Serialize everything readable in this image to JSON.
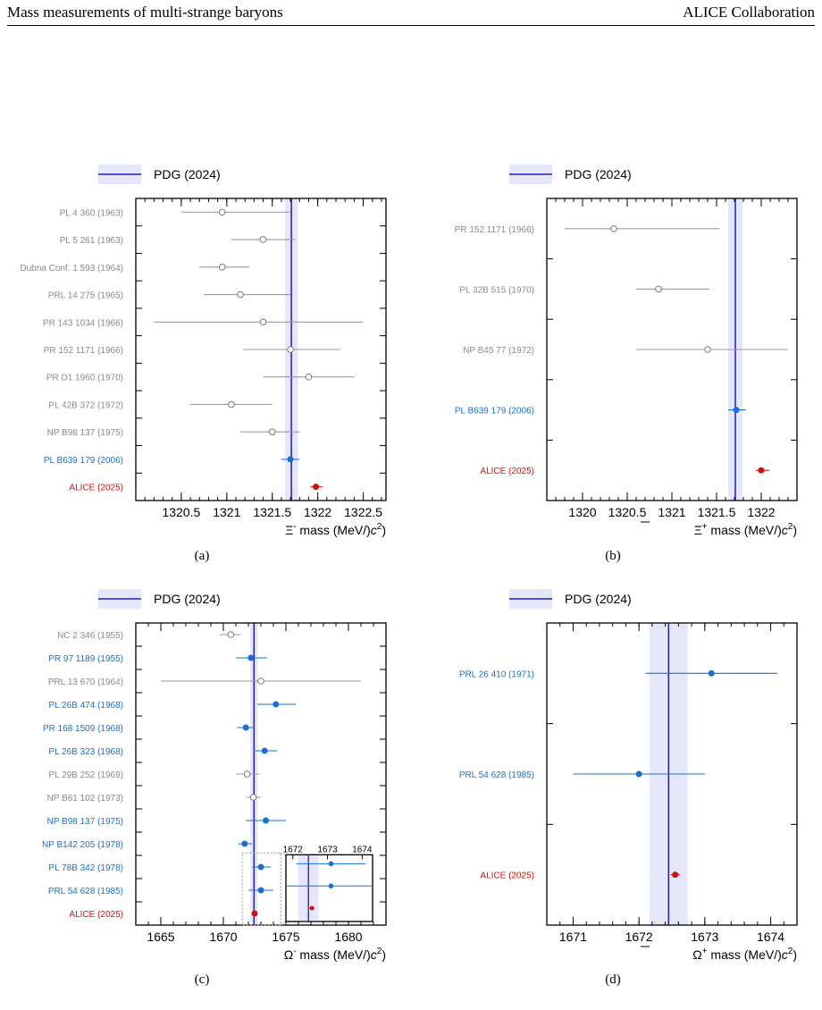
{
  "header": {
    "left": "Mass measurements of multi-strange baryons",
    "right": "ALICE Collaboration"
  },
  "legend_label": "PDG (2024)",
  "panels": [
    {
      "id": "a",
      "caption": "(a)",
      "xlabel": "Ξ mass (MeV/c²)",
      "sup": "-",
      "xlim": [
        1320.0,
        1322.75
      ],
      "ticks": [
        1320.5,
        1321,
        1321.5,
        1322,
        1322.5
      ],
      "tick_labels": [
        "1320.5",
        "1321",
        "1321.5",
        "1322",
        "1322.5"
      ],
      "pdg": {
        "value": 1321.71,
        "band": [
          1321.64,
          1321.78
        ]
      },
      "points": [
        {
          "label": "PL 4 360 (1963)",
          "value": 1320.95,
          "err": [
            1320.5,
            1321.7
          ],
          "style": "grey"
        },
        {
          "label": "PL 5 261 (1963)",
          "value": 1321.4,
          "err": [
            1321.05,
            1321.75
          ],
          "style": "grey"
        },
        {
          "label": "Dubna Conf. 1 593 (1964)",
          "value": 1320.95,
          "err": [
            1320.7,
            1321.25
          ],
          "style": "grey"
        },
        {
          "label": "PRL 14 275 (1965)",
          "value": 1321.15,
          "err": [
            1320.75,
            1321.7
          ],
          "style": "grey"
        },
        {
          "label": "PR 143 1034 (1966)",
          "value": 1321.4,
          "err": [
            1320.2,
            1322.5
          ],
          "style": "grey"
        },
        {
          "label": "PR 152 1171 (1966)",
          "value": 1321.7,
          "err": [
            1321.18,
            1322.25
          ],
          "style": "grey"
        },
        {
          "label": "PR D1 1960 (1970)",
          "value": 1321.9,
          "err": [
            1321.4,
            1322.4
          ],
          "style": "grey"
        },
        {
          "label": "PL 42B 372 (1972)",
          "value": 1321.05,
          "err": [
            1320.6,
            1321.5
          ],
          "style": "grey"
        },
        {
          "label": "NP B98 137 (1975)",
          "value": 1321.5,
          "err": [
            1321.15,
            1321.8
          ],
          "style": "grey"
        },
        {
          "label": "PL B639 179 (2006)",
          "value": 1321.7,
          "err": [
            1321.6,
            1321.8
          ],
          "style": "blue"
        },
        {
          "label": "ALICE (2025)",
          "value": 1321.98,
          "err": [
            1321.92,
            1322.05
          ],
          "style": "red"
        }
      ]
    },
    {
      "id": "b",
      "caption": "(b)",
      "xlabel": "Ξ mass (MeV/c²)",
      "sup": "+",
      "xlim": [
        1319.6,
        1322.4
      ],
      "ticks": [
        1320,
        1320.5,
        1321,
        1321.5,
        1322
      ],
      "tick_labels": [
        "1320",
        "1320.5",
        "1321",
        "1321.5",
        "1322"
      ],
      "pdg": {
        "value": 1321.71,
        "band": [
          1321.63,
          1321.79
        ]
      },
      "points": [
        {
          "label": "PR 152 1171 (1966)",
          "value": 1320.35,
          "err": [
            1319.8,
            1321.53
          ],
          "style": "grey"
        },
        {
          "label": "PL 32B 515 (1970)",
          "value": 1320.85,
          "err": [
            1320.6,
            1321.42
          ],
          "style": "grey"
        },
        {
          "label": "NP B45 77 (1972)",
          "value": 1321.4,
          "err": [
            1320.6,
            1322.3
          ],
          "style": "grey"
        },
        {
          "label": "PL B639 179 (2006)",
          "value": 1321.72,
          "err": [
            1321.63,
            1321.83
          ],
          "style": "blue"
        },
        {
          "label": "ALICE (2025)",
          "value": 1322.0,
          "err": [
            1321.94,
            1322.09
          ],
          "style": "red"
        }
      ]
    },
    {
      "id": "c",
      "caption": "(c)",
      "xlabel": "Ω mass (MeV/c²)",
      "sup": "-",
      "xlim": [
        1663.0,
        1683.0
      ],
      "ticks": [
        1665,
        1670,
        1675,
        1680
      ],
      "tick_labels": [
        "1665",
        "1670",
        "1675",
        "1680"
      ],
      "pdg": {
        "value": 1672.45,
        "band": [
          1672.16,
          1672.74
        ]
      },
      "points": [
        {
          "label": "NC 2 346 (1955)",
          "value": 1670.6,
          "err": [
            1669.7,
            1671.4
          ],
          "style": "grey"
        },
        {
          "label": "PR 97 1189 (1955)",
          "value": 1672.2,
          "err": [
            1671.0,
            1673.5
          ],
          "style": "blue"
        },
        {
          "label": "PRL 13 670 (1964)",
          "value": 1673.0,
          "err": [
            1665.0,
            1681.0
          ],
          "style": "grey"
        },
        {
          "label": "PL 26B 474 (1968)",
          "value": 1674.2,
          "err": [
            1672.7,
            1675.8
          ],
          "style": "blue"
        },
        {
          "label": "PR 168 1509 (1968)",
          "value": 1671.8,
          "err": [
            1671.1,
            1672.5
          ],
          "style": "blue"
        },
        {
          "label": "PL 26B 323 (1968)",
          "value": 1673.3,
          "err": [
            1672.4,
            1674.3
          ],
          "style": "blue"
        },
        {
          "label": "PL 29B 252 (1969)",
          "value": 1671.9,
          "err": [
            1671.0,
            1672.9
          ],
          "style": "grey"
        },
        {
          "label": "NP B61 102 (1973)",
          "value": 1672.4,
          "err": [
            1671.8,
            1673.0
          ],
          "style": "grey"
        },
        {
          "label": "NP B98 137 (1975)",
          "value": 1673.4,
          "err": [
            1671.8,
            1675.0
          ],
          "style": "blue"
        },
        {
          "label": "NP B142 205 (1978)",
          "value": 1671.7,
          "err": [
            1671.2,
            1672.3
          ],
          "style": "blue"
        },
        {
          "label": "PL 78B 342 (1978)",
          "value": 1673.0,
          "err": [
            1672.3,
            1673.8
          ],
          "style": "blue"
        },
        {
          "label": "PRL 54 628 (1985)",
          "value": 1673.0,
          "err": [
            1672.0,
            1674.0
          ],
          "style": "blue"
        },
        {
          "label": "ALICE (2025)",
          "value": 1672.5,
          "err": [
            1672.4,
            1672.6
          ],
          "style": "red"
        }
      ],
      "inset": {
        "xlim": [
          1671.8,
          1674.3
        ],
        "ticks": [
          1672,
          1673,
          1674
        ],
        "tick_labels": [
          "1672",
          "1673",
          "1674"
        ],
        "points": [
          {
            "value": 1673.1,
            "err": [
              1672.1,
              1674.1
            ],
            "style": "blue"
          },
          {
            "value": 1673.1,
            "err": [
              1671.8,
              1674.3
            ],
            "style": "blue"
          },
          {
            "value": 1672.55,
            "err": [
              1672.48,
              1672.62
            ],
            "style": "red"
          }
        ]
      }
    },
    {
      "id": "d",
      "caption": "(d)",
      "xlabel": "Ω mass (MeV/c²)",
      "sup": "+",
      "xlim": [
        1670.6,
        1674.4
      ],
      "ticks": [
        1671,
        1672,
        1673,
        1674
      ],
      "tick_labels": [
        "1671",
        "1672",
        "1673",
        "1674"
      ],
      "pdg": {
        "value": 1672.45,
        "band": [
          1672.16,
          1672.74
        ]
      },
      "points": [
        {
          "label": "PRL 26 410 (1971)",
          "value": 1673.1,
          "err": [
            1672.1,
            1674.1
          ],
          "style": "blue"
        },
        {
          "label": "PRL 54 628 (1985)",
          "value": 1672.0,
          "err": [
            1671.0,
            1673.0
          ],
          "style": "blue"
        },
        {
          "label": "ALICE (2025)",
          "value": 1672.55,
          "err": [
            1672.48,
            1672.62
          ],
          "style": "red"
        }
      ]
    }
  ],
  "chart_data": [
    {
      "type": "scatter",
      "panel": "a",
      "xlabel": "Ξ- mass (MeV/c²)",
      "categories": [
        "PL 4 360 (1963)",
        "PL 5 261 (1963)",
        "Dubna Conf. 1 593 (1964)",
        "PRL 14 275 (1965)",
        "PR 143 1034 (1966)",
        "PR 152 1171 (1966)",
        "PR D1 1960 (1970)",
        "PL 42B 372 (1972)",
        "NP B98 137 (1975)",
        "PL B639 179 (2006)",
        "ALICE (2025)"
      ],
      "values": [
        1320.95,
        1321.4,
        1320.95,
        1321.15,
        1321.4,
        1321.7,
        1321.9,
        1321.05,
        1321.5,
        1321.7,
        1321.98
      ],
      "xlim": [
        1320.0,
        1322.75
      ],
      "legend": "top-left"
    },
    {
      "type": "scatter",
      "panel": "b",
      "xlabel": "Ξ+ mass (MeV/c²)",
      "categories": [
        "PR 152 1171 (1966)",
        "PL 32B 515 (1970)",
        "NP B45 77 (1972)",
        "PL B639 179 (2006)",
        "ALICE (2025)"
      ],
      "values": [
        1320.35,
        1320.85,
        1321.4,
        1321.72,
        1322.0
      ],
      "xlim": [
        1319.6,
        1322.4
      ],
      "legend": "top-left"
    },
    {
      "type": "scatter",
      "panel": "c",
      "xlabel": "Ω- mass (MeV/c²)",
      "categories": [
        "NC 2 346 (1955)",
        "PR 97 1189 (1955)",
        "PRL 13 670 (1964)",
        "PL 26B 474 (1968)",
        "PR 168 1509 (1968)",
        "PL 26B 323 (1968)",
        "PL 29B 252 (1969)",
        "NP B61 102 (1973)",
        "NP B98 137 (1975)",
        "NP B142 205 (1978)",
        "PL 78B 342 (1978)",
        "PRL 54 628 (1985)",
        "ALICE (2025)"
      ],
      "values": [
        1670.6,
        1672.2,
        1673.0,
        1674.2,
        1671.8,
        1673.3,
        1671.9,
        1672.4,
        1673.4,
        1671.7,
        1673.0,
        1673.0,
        1672.5
      ],
      "xlim": [
        1663.0,
        1683.0
      ],
      "legend": "top-left"
    },
    {
      "type": "scatter",
      "panel": "d",
      "xlabel": "Ω+ mass (MeV/c²)",
      "categories": [
        "PRL 26 410 (1971)",
        "PRL 54 628 (1985)",
        "ALICE (2025)"
      ],
      "values": [
        1673.1,
        1672.0,
        1672.55
      ],
      "xlim": [
        1670.6,
        1674.4
      ],
      "legend": "top-left"
    }
  ],
  "colors": {
    "grey": "#9a9a9a",
    "blue": "#1a6fd0",
    "red": "#d01010",
    "pdg_line": "#2020b0",
    "pdg_band": "#e6e6fa"
  }
}
